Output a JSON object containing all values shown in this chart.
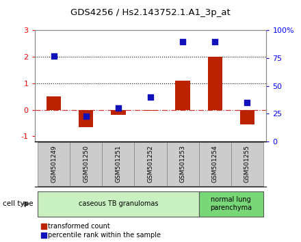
{
  "title": "GDS4256 / Hs2.143752.1.A1_3p_at",
  "samples": [
    "GSM501249",
    "GSM501250",
    "GSM501251",
    "GSM501252",
    "GSM501253",
    "GSM501254",
    "GSM501255"
  ],
  "transformed_count": [
    0.5,
    -0.65,
    -0.2,
    -0.03,
    1.1,
    2.0,
    -0.55
  ],
  "percentile_rank": [
    77,
    23,
    30,
    40,
    90,
    90,
    35
  ],
  "ylim_left": [
    -1.2,
    3.0
  ],
  "ylim_right": [
    0,
    100
  ],
  "right_ticks": [
    0,
    25,
    50,
    75,
    100
  ],
  "right_tick_labels": [
    "0",
    "25",
    "50",
    "75",
    "100%"
  ],
  "left_ticks": [
    -1,
    0,
    1,
    2,
    3
  ],
  "cell_type_groups": [
    {
      "label": "caseous TB granulomas",
      "samples": [
        0,
        1,
        2,
        3,
        4
      ],
      "color": "#c8f0c0"
    },
    {
      "label": "normal lung\nparenchyma",
      "samples": [
        5,
        6
      ],
      "color": "#78d878"
    }
  ],
  "bar_color": "#bb2200",
  "dot_color": "#1111bb",
  "bar_width": 0.45,
  "dot_size": 40,
  "background_color": "#ffffff",
  "legend_items": [
    {
      "label": "transformed count",
      "color": "#bb2200"
    },
    {
      "label": "percentile rank within the sample",
      "color": "#1111bb"
    }
  ]
}
